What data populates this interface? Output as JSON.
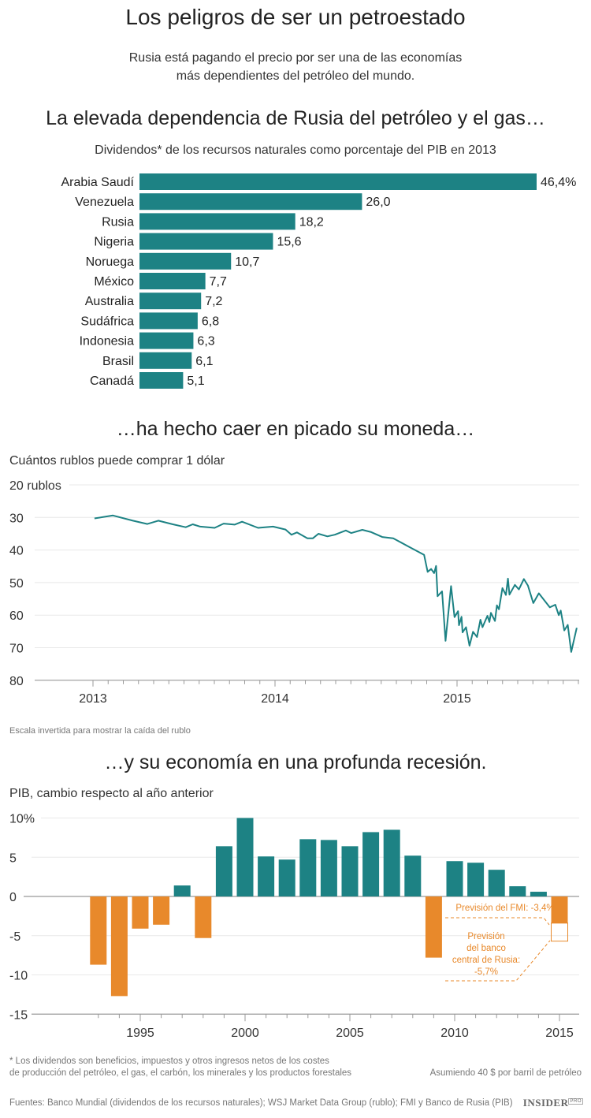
{
  "header": {
    "title": "Los peligros de ser un petroestado",
    "subtitle_line1": "Rusia está pagando el precio por ser una de las economías",
    "subtitle_line2": "más dependientes del petróleo del mundo."
  },
  "colors": {
    "teal": "#1d8284",
    "orange": "#e8892b",
    "grid": "#e8e8e8",
    "axis": "#999999"
  },
  "sections": {
    "s1_heading": "La elevada dependencia de Rusia del petróleo y el gas…",
    "s1_caption": "Dividendos* de los recursos naturales como porcentaje del PIB en 2013",
    "s2_heading": "…ha hecho caer en picado su moneda…",
    "s2_caption": "Cuántos rublos puede comprar 1 dólar",
    "s2_note": "Escala invertida para mostrar la caída del rublo",
    "s3_heading": "…y su economía en una profunda recesión.",
    "s3_caption": "PIB, cambio respecto al año anterior"
  },
  "chart_data": [
    {
      "type": "bar",
      "orientation": "horizontal",
      "title": "Dividendos* de los recursos naturales como porcentaje del PIB en 2013",
      "categories": [
        "Arabia Saudí",
        "Venezuela",
        "Rusia",
        "Nigeria",
        "Noruega",
        "México",
        "Australia",
        "Sudáfrica",
        "Indonesia",
        "Brasil",
        "Canadá"
      ],
      "values": [
        46.4,
        26.0,
        18.2,
        15.6,
        10.7,
        7.7,
        7.2,
        6.8,
        6.3,
        6.1,
        5.1
      ],
      "value_labels": [
        "46,4%",
        "26,0",
        "18,2",
        "15,6",
        "10,7",
        "7,7",
        "7,2",
        "6,8",
        "6,3",
        "6,1",
        "5,1"
      ],
      "color": "#1d8284"
    },
    {
      "type": "line",
      "title": "Cuántos rublos puede comprar 1 dólar",
      "y_inverted": true,
      "ylim": [
        20,
        80
      ],
      "y_ticks": [
        "20 rublos",
        "30",
        "40",
        "50",
        "60",
        "70",
        "80"
      ],
      "y_tick_values": [
        20,
        30,
        40,
        50,
        60,
        70,
        80
      ],
      "x_ticks": [
        "2013",
        "2014",
        "2015"
      ],
      "grid": true,
      "color": "#1d8284",
      "points": [
        [
          "2013-01-04",
          30.3
        ],
        [
          "2013-02-10",
          29.4
        ],
        [
          "2013-03-22",
          31.0
        ],
        [
          "2013-04-20",
          32.0
        ],
        [
          "2013-05-12",
          31.0
        ],
        [
          "2013-06-10",
          32.1
        ],
        [
          "2013-07-06",
          33.0
        ],
        [
          "2013-07-20",
          32.1
        ],
        [
          "2013-08-04",
          32.8
        ],
        [
          "2013-09-02",
          33.2
        ],
        [
          "2013-09-20",
          31.9
        ],
        [
          "2013-10-12",
          32.2
        ],
        [
          "2013-10-27",
          31.3
        ],
        [
          "2013-11-28",
          33.2
        ],
        [
          "2013-12-28",
          32.8
        ],
        [
          "2014-01-22",
          33.7
        ],
        [
          "2014-02-03",
          35.3
        ],
        [
          "2014-02-14",
          34.6
        ],
        [
          "2014-03-07",
          36.4
        ],
        [
          "2014-03-18",
          36.4
        ],
        [
          "2014-03-29",
          35.0
        ],
        [
          "2014-04-16",
          35.8
        ],
        [
          "2014-05-01",
          35.3
        ],
        [
          "2014-05-23",
          34.0
        ],
        [
          "2014-06-03",
          34.8
        ],
        [
          "2014-06-25",
          33.8
        ],
        [
          "2014-07-13",
          34.5
        ],
        [
          "2014-08-04",
          36.0
        ],
        [
          "2014-08-26",
          36.4
        ],
        [
          "2014-09-24",
          38.8
        ],
        [
          "2014-10-27",
          41.5
        ],
        [
          "2014-11-03",
          46.7
        ],
        [
          "2014-11-10",
          45.8
        ],
        [
          "2014-11-16",
          47.1
        ],
        [
          "2014-11-20",
          44.9
        ],
        [
          "2014-11-23",
          54.2
        ],
        [
          "2014-12-02",
          52.7
        ],
        [
          "2014-12-09",
          67.9
        ],
        [
          "2014-12-20",
          51.1
        ],
        [
          "2014-12-27",
          60.6
        ],
        [
          "2015-01-03",
          58.8
        ],
        [
          "2015-01-05",
          63.1
        ],
        [
          "2015-01-10",
          60.5
        ],
        [
          "2015-01-12",
          65.3
        ],
        [
          "2015-01-19",
          63.7
        ],
        [
          "2015-01-26",
          69.4
        ],
        [
          "2015-02-02",
          65.1
        ],
        [
          "2015-02-10",
          66.7
        ],
        [
          "2015-02-17",
          61.4
        ],
        [
          "2015-02-21",
          63.7
        ],
        [
          "2015-03-03",
          60.2
        ],
        [
          "2015-03-07",
          62.1
        ],
        [
          "2015-03-10",
          59.3
        ],
        [
          "2015-03-18",
          61.8
        ],
        [
          "2015-03-22",
          57.0
        ],
        [
          "2015-03-26",
          58.2
        ],
        [
          "2015-04-02",
          51.7
        ],
        [
          "2015-04-09",
          53.8
        ],
        [
          "2015-04-13",
          48.8
        ],
        [
          "2015-04-16",
          53.7
        ],
        [
          "2015-04-27",
          50.7
        ],
        [
          "2015-05-05",
          52.1
        ],
        [
          "2015-05-15",
          48.9
        ],
        [
          "2015-05-23",
          50.9
        ],
        [
          "2015-06-03",
          56.3
        ],
        [
          "2015-06-14",
          53.3
        ],
        [
          "2015-07-06",
          57.6
        ],
        [
          "2015-07-17",
          56.8
        ],
        [
          "2015-07-24",
          60.0
        ],
        [
          "2015-07-28",
          58.6
        ],
        [
          "2015-08-04",
          64.7
        ],
        [
          "2015-08-11",
          63.0
        ],
        [
          "2015-08-18",
          71.3
        ],
        [
          "2015-08-29",
          63.9
        ]
      ]
    },
    {
      "type": "bar",
      "title": "PIB, cambio respecto al año anterior",
      "ylim": [
        -15,
        10
      ],
      "y_ticks": [
        "10%",
        "5",
        "0",
        "-5",
        "-10",
        "-15"
      ],
      "y_tick_values": [
        10,
        5,
        0,
        -5,
        -10,
        -15
      ],
      "x_ticks": [
        "1995",
        "2000",
        "2005",
        "2010",
        "2015"
      ],
      "grid": true,
      "positive_color": "#1d8284",
      "negative_color": "#e8892b",
      "years": [
        1993,
        1994,
        1995,
        1996,
        1997,
        1998,
        1999,
        2000,
        2001,
        2002,
        2003,
        2004,
        2005,
        2006,
        2007,
        2008,
        2009,
        2010,
        2011,
        2012,
        2013,
        2014,
        2015
      ],
      "values": [
        -8.7,
        -12.7,
        -4.1,
        -3.6,
        1.4,
        -5.3,
        6.4,
        10.0,
        5.1,
        4.7,
        7.3,
        7.2,
        6.4,
        8.2,
        8.5,
        5.2,
        -7.8,
        4.5,
        4.3,
        3.4,
        1.3,
        0.6,
        -3.4
      ],
      "forecasts": {
        "imf": {
          "value": -3.4,
          "label": "Previsión del FMI: -3,4%"
        },
        "cbr": {
          "value": -5.7,
          "label_lines": [
            "Previsión",
            "del banco",
            "central de Rusia:",
            "-5,7%"
          ]
        }
      }
    }
  ],
  "footer": {
    "footnote_line1": "* Los dividendos son beneficios, impuestos y otros ingresos netos de los costes",
    "footnote_line2": "de producción del petróleo, el gas, el carbón, los minerales y los productos forestales",
    "assumption": "Asumiendo 40 $ por barril de petróleo",
    "sources": "Fuentes: Banco Mundial (dividendos de los recursos naturales); WSJ Market Data Group (rublo); FMI y Banco de Rusia (PIB)",
    "logo": "INSIDER",
    "logo_badge": "PRO"
  }
}
